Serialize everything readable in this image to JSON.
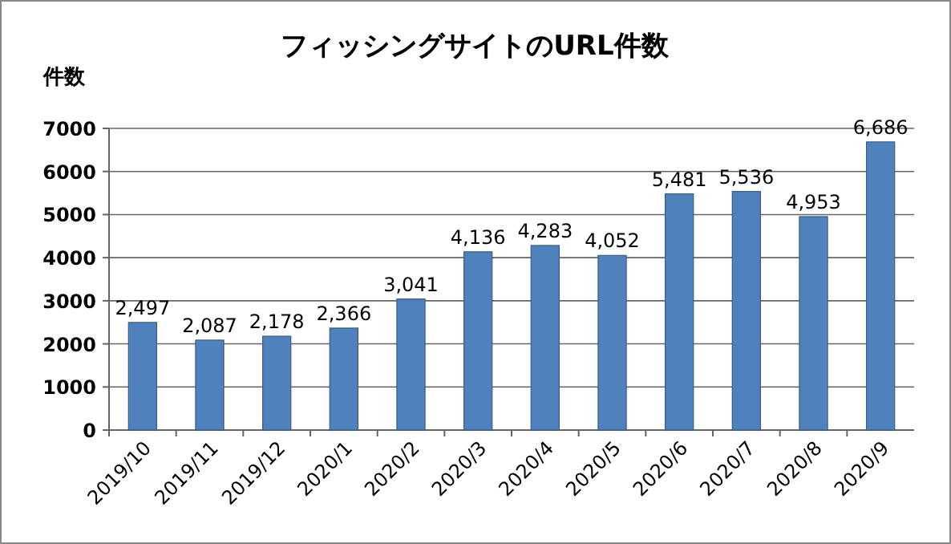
{
  "chart_data": {
    "type": "bar",
    "title": "フィッシングサイトのURL件数",
    "ylabel": "件数",
    "categories": [
      "2019/10",
      "2019/11",
      "2019/12",
      "2020/1",
      "2020/2",
      "2020/3",
      "2020/4",
      "2020/5",
      "2020/6",
      "2020/7",
      "2020/8",
      "2020/9"
    ],
    "values": [
      2497,
      2087,
      2178,
      2366,
      3041,
      4136,
      4283,
      4052,
      5481,
      5536,
      4953,
      6686
    ],
    "value_labels": [
      "2,497",
      "2,087",
      "2,178",
      "2,366",
      "3,041",
      "4,136",
      "4,283",
      "4,052",
      "5,481",
      "5,536",
      "4,953",
      "6,686"
    ],
    "color": "#4f81bd",
    "ylim": [
      0,
      7000
    ],
    "yticks": [
      0,
      1000,
      2000,
      3000,
      4000,
      5000,
      6000,
      7000
    ],
    "grid": "y"
  }
}
